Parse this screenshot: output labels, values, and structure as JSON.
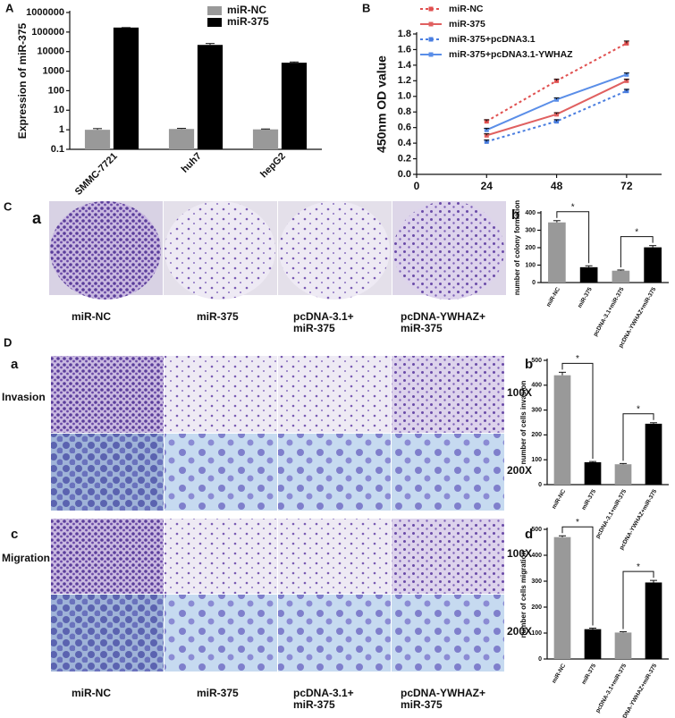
{
  "chart_data": [
    {
      "type": "bar",
      "ylabel": "Expression of miR-375",
      "log_scale": true,
      "categories": [
        "SMMC-7721",
        "huh7",
        "hepG2"
      ],
      "series": [
        {
          "name": "miR-NC",
          "color": "#999999",
          "values": [
            1,
            1.1,
            1.05
          ],
          "errors": [
            0.15,
            0.08,
            0.05
          ]
        },
        {
          "name": "miR-375",
          "color": "#000000",
          "values": [
            170000,
            22000,
            2700
          ],
          "errors": [
            0,
            4000,
            250
          ]
        }
      ],
      "ylim": [
        0.1,
        1000000
      ],
      "yticks": [
        0.1,
        1,
        10,
        100,
        1000,
        10000,
        100000,
        1000000
      ],
      "legend": "upper right"
    },
    {
      "type": "line",
      "ylabel": "450nm OD value",
      "x": [
        24,
        48,
        72
      ],
      "series": [
        {
          "name": "miR-NC",
          "color": "#e05050",
          "dash": true,
          "values": [
            0.68,
            1.2,
            1.68
          ],
          "errors": [
            0.02,
            0.02,
            0.03
          ]
        },
        {
          "name": "miR-375",
          "color": "#e06060",
          "dash": false,
          "values": [
            0.5,
            0.77,
            1.2
          ],
          "errors": [
            0.02,
            0.02,
            0.02
          ]
        },
        {
          "name": "miR-375+pcDNA3.1",
          "color": "#4a7ee0",
          "dash": true,
          "values": [
            0.42,
            0.68,
            1.07
          ],
          "errors": [
            0.02,
            0.02,
            0.02
          ]
        },
        {
          "name": "miR-375+pcDNA3.1-YWHAZ",
          "color": "#5a8ee8",
          "dash": false,
          "values": [
            0.57,
            0.96,
            1.28
          ],
          "errors": [
            0.02,
            0.02,
            0.02
          ]
        }
      ],
      "xlim": [
        0,
        84
      ],
      "xticks": [
        0,
        24,
        48,
        72
      ],
      "ylim": [
        0,
        1.8
      ],
      "yticks": [
        {
          "value": 0,
          "label": "0.0"
        },
        0.2,
        0.4,
        0.6,
        0.8,
        {
          "value": 1,
          "label": "1.0"
        },
        1.2,
        1.4,
        1.6,
        1.8
      ],
      "legend": "upper left"
    },
    {
      "type": "bar",
      "ylabel": "number of colony formation",
      "categories": [
        "miR-NC",
        "miR-375",
        "pcDNA-3.1+miR-375",
        "pcDNA-YWHAZ+miR-375"
      ],
      "values": [
        345,
        88,
        68,
        202
      ],
      "errors": [
        10,
        8,
        4,
        10
      ],
      "colors": [
        "#999999",
        "#000000",
        "#999999",
        "#000000"
      ],
      "ylim": [
        0,
        400
      ],
      "yticks": [
        0,
        100,
        200,
        300,
        400
      ],
      "significance": [
        {
          "label": "*",
          "pair": [
            0,
            1
          ]
        },
        {
          "label": "*",
          "pair": [
            2,
            3
          ]
        }
      ]
    },
    {
      "type": "bar",
      "ylabel": "number of cells invasion",
      "categories": [
        "miR-NC",
        "miR-375",
        "pcDNA-3.1+miR-375",
        "pcDNA-YWHAZ+miR-375"
      ],
      "values": [
        440,
        90,
        82,
        245
      ],
      "errors": [
        12,
        3,
        3,
        4
      ],
      "colors": [
        "#999999",
        "#000000",
        "#999999",
        "#000000"
      ],
      "ylim": [
        0,
        500
      ],
      "yticks": [
        0,
        100,
        200,
        300,
        400,
        500
      ],
      "significance": [
        {
          "label": "*",
          "pair": [
            0,
            1
          ]
        },
        {
          "label": "*",
          "pair": [
            2,
            3
          ]
        }
      ]
    },
    {
      "type": "bar",
      "ylabel": "number of cells migration",
      "categories": [
        "miR-NC",
        "miR-375",
        "pcDNA-3.1+miR-375",
        "pcDNA-YWHAZ+miR-375"
      ],
      "values": [
        470,
        115,
        102,
        295
      ],
      "errors": [
        5,
        4,
        3,
        8
      ],
      "colors": [
        "#999999",
        "#000000",
        "#999999",
        "#000000"
      ],
      "ylim": [
        0,
        500
      ],
      "yticks": [
        0,
        100,
        200,
        300,
        400,
        500
      ],
      "significance": [
        {
          "label": "*",
          "pair": [
            0,
            1
          ]
        },
        {
          "label": "*",
          "pair": [
            2,
            3
          ]
        }
      ]
    }
  ],
  "panel_labels": [
    "A",
    "B",
    "C",
    "a",
    "b",
    "D",
    "a",
    "b",
    "c",
    "d"
  ],
  "row_labels": [
    "Invasion",
    "Migration"
  ],
  "magnifications": [
    "100X",
    "200X",
    "100X",
    "200X"
  ],
  "captions_c": [
    [
      "miR-NC"
    ],
    [
      "miR-375"
    ],
    [
      "pcDNA-3.1+",
      "miR-375"
    ],
    [
      "pcDNA-YWHAZ+",
      "miR-375"
    ]
  ],
  "captions_d": [
    [
      "miR-NC"
    ],
    [
      "miR-375"
    ],
    [
      "pcDNA-3.1+",
      "miR-375"
    ],
    [
      "pcDNA-YWHAZ+",
      "miR-375"
    ]
  ]
}
